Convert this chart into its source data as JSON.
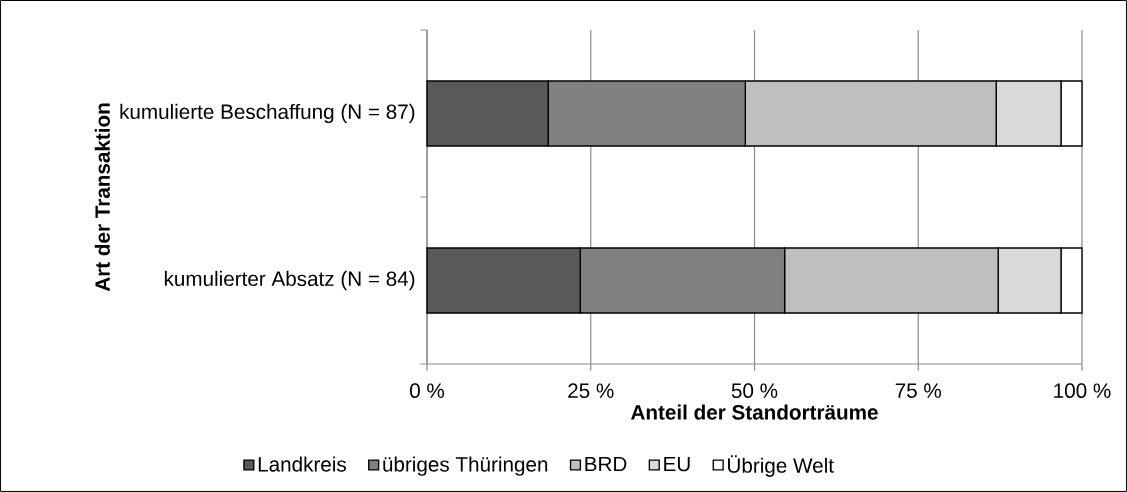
{
  "chart_data": {
    "type": "bar",
    "orientation": "horizontal",
    "stacked": true,
    "xlabel": "Anteil der Standorträume",
    "ylabel": "Art der Transaktion",
    "categories": [
      "kumulierte Beschaffung (N = 87)",
      "kumulierter Absatz (N = 84)"
    ],
    "series": [
      {
        "name": "Landkreis",
        "color": "#595959",
        "values": [
          18.5,
          23.4
        ]
      },
      {
        "name": "übriges Thüringen",
        "color": "#808080",
        "values": [
          30.1,
          31.2
        ]
      },
      {
        "name": "BRD",
        "color": "#bfbfbf",
        "values": [
          38.3,
          32.6
        ]
      },
      {
        "name": "EU",
        "color": "#d9d9d9",
        "values": [
          9.9,
          9.6
        ]
      },
      {
        "name": "Übrige Welt",
        "color": "#ffffff",
        "values": [
          3.2,
          3.2
        ]
      }
    ],
    "xlim": [
      0,
      100
    ],
    "xticks": [
      {
        "value": 0,
        "label": "0 %"
      },
      {
        "value": 25,
        "label": "25 %"
      },
      {
        "value": 50,
        "label": "50 %"
      },
      {
        "value": 75,
        "label": "75 %"
      },
      {
        "value": 100,
        "label": "100 %"
      }
    ],
    "grid": "x",
    "legend": "bottom"
  }
}
